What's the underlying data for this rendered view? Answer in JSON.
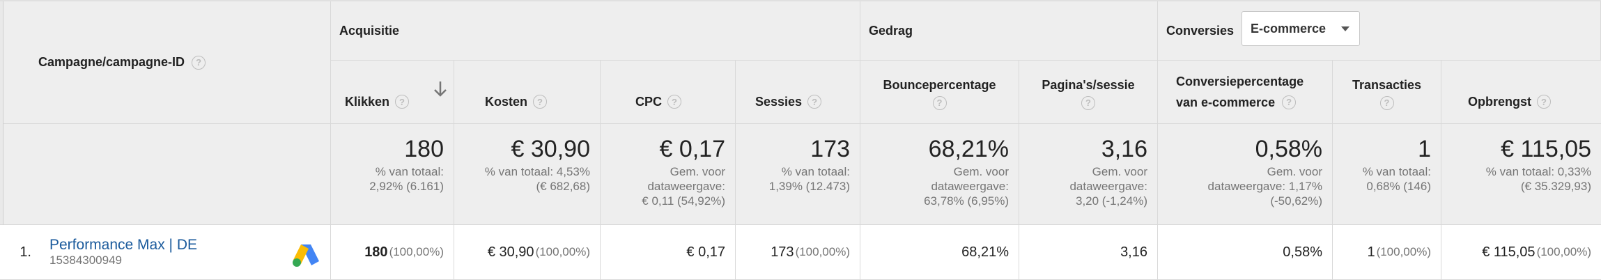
{
  "groups": {
    "acquisitie": "Acquisitie",
    "gedrag": "Gedrag",
    "conversies": "Conversies",
    "conversies_dropdown": "E-commerce"
  },
  "columns": {
    "campagne": "Campagne/campagne-ID",
    "klikken": "Klikken",
    "kosten": "Kosten",
    "cpc": "CPC",
    "sessies": "Sessies",
    "bounce": "Bouncepercentage",
    "paginas": "Pagina's/sessie",
    "conv_line1": "Conversiepercentage",
    "conv_line2": "van e-commerce",
    "transacties": "Transacties",
    "opbrengst": "Opbrengst"
  },
  "totals": {
    "klikken": {
      "value": "180",
      "sub1": "% van totaal:",
      "sub2": "2,92% (6.161)"
    },
    "kosten": {
      "value": "€ 30,90",
      "sub1": "% van totaal: 4,53%",
      "sub2": "(€ 682,68)"
    },
    "cpc": {
      "value": "€ 0,17",
      "sub1": "Gem. voor",
      "sub2": "dataweergave:",
      "sub3": "€ 0,11 (54,92%)"
    },
    "sessies": {
      "value": "173",
      "sub1": "% van totaal:",
      "sub2": "1,39% (12.473)"
    },
    "bounce": {
      "value": "68,21%",
      "sub1": "Gem. voor",
      "sub2": "dataweergave:",
      "sub3": "63,78% (6,95%)"
    },
    "paginas": {
      "value": "3,16",
      "sub1": "Gem. voor",
      "sub2": "dataweergave:",
      "sub3": "3,20 (-1,24%)"
    },
    "conv": {
      "value": "0,58%",
      "sub1": "Gem. voor",
      "sub2": "dataweergave: 1,17%",
      "sub3": "(-50,62%)"
    },
    "transacties": {
      "value": "1",
      "sub1": "% van totaal:",
      "sub2": "0,68% (146)"
    },
    "opbrengst": {
      "value": "€ 115,05",
      "sub1": "% van totaal: 0,33%",
      "sub2": "(€ 35.329,93)"
    }
  },
  "rows": [
    {
      "index": "1.",
      "name": "Performance Max | DE",
      "id": "15384300949",
      "klikken": "180",
      "klikken_pct": "(100,00%)",
      "kosten": "€ 30,90",
      "kosten_pct": "(100,00%)",
      "cpc": "€ 0,17",
      "sessies": "173",
      "sessies_pct": "(100,00%)",
      "bounce": "68,21%",
      "paginas": "3,16",
      "conv": "0,58%",
      "transacties": "1",
      "transacties_pct": "(100,00%)",
      "opbrengst": "€ 115,05",
      "opbrengst_pct": "(100,00%)"
    }
  ],
  "icons": {
    "help": "help-circle-icon",
    "sort": "arrow-down-icon",
    "ads": "google-ads-icon"
  }
}
